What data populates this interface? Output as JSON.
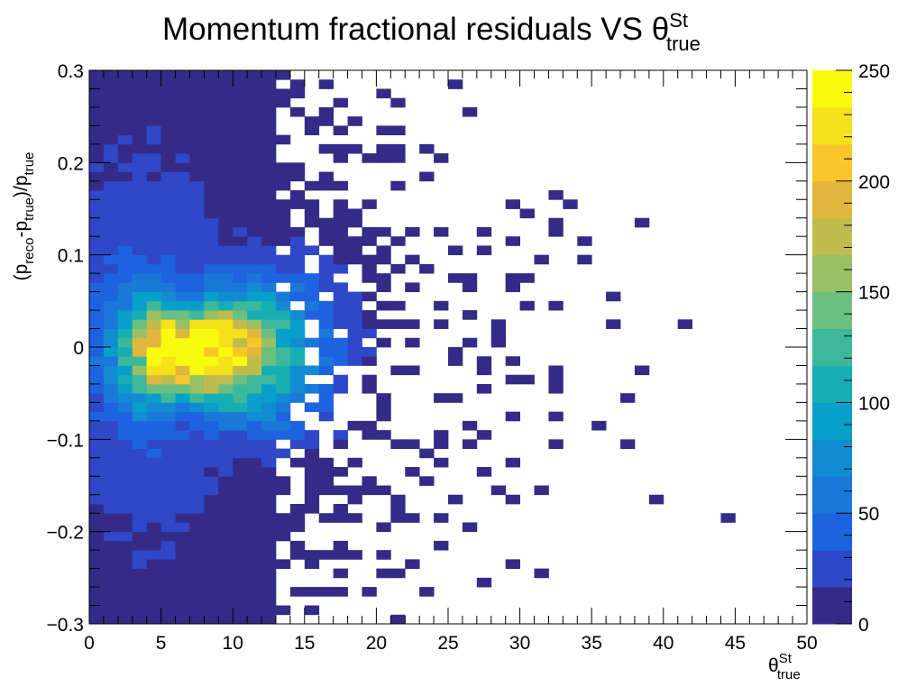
{
  "chart_data": {
    "type": "heatmap",
    "title": "Momentum fractional residuals VS θ",
    "title_sup": "St",
    "title_sub": "true",
    "xlabel": "θ",
    "xlabel_sup": "St",
    "xlabel_sub": "true",
    "ylabel_parts": [
      "(p",
      "reco",
      "-p",
      "true",
      ")/p",
      "true"
    ],
    "xlim": [
      0,
      50
    ],
    "ylim": [
      -0.3,
      0.3
    ],
    "zlim": [
      0,
      250
    ],
    "x_ticks": [
      "0",
      "5",
      "10",
      "15",
      "20",
      "25",
      "30",
      "35",
      "40",
      "45",
      "50"
    ],
    "y_ticks": [
      "−0.3",
      "−0.2",
      "−0.1",
      "0",
      "0.1",
      "0.2",
      "0.3"
    ],
    "z_ticks": [
      "0",
      "50",
      "100",
      "150",
      "200",
      "250"
    ],
    "colormap": [
      "#352a87",
      "#2e48c8",
      "#1d63e0",
      "#1a78d9",
      "#138bd2",
      "#08a0c8",
      "#17aeb3",
      "#3db89a",
      "#6bbf80",
      "#98c064",
      "#bfbc4d",
      "#e0b73c",
      "#f8c52a",
      "#f6e11b",
      "#f9fb0e"
    ],
    "bin_size": {
      "x": 1.0,
      "y": 0.01
    },
    "peak": {
      "x": 6.5,
      "y": -0.005,
      "value": 250
    }
  }
}
